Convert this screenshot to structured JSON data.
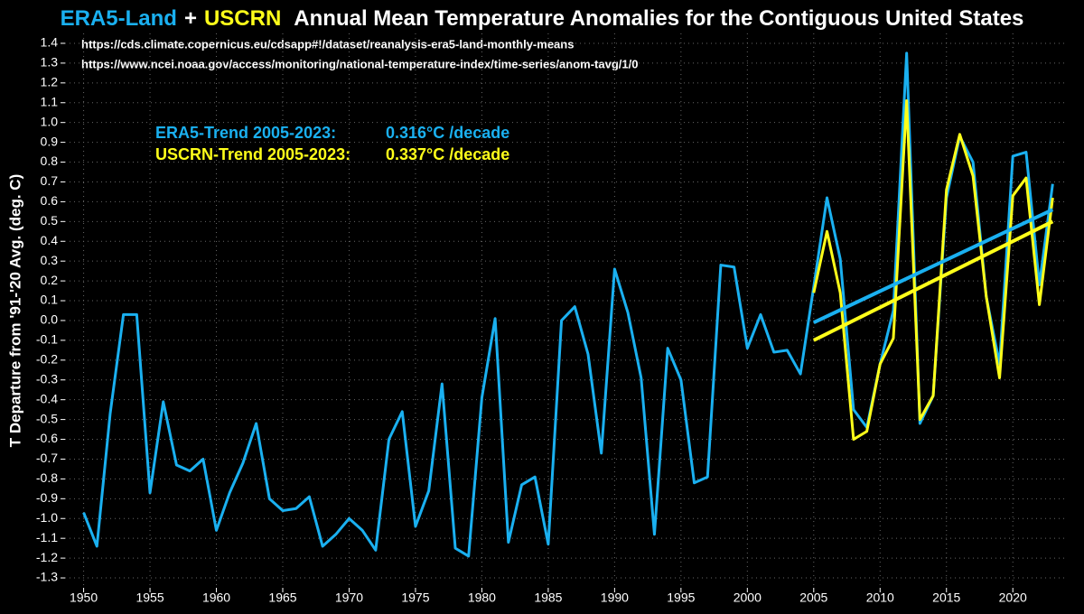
{
  "chart_data": {
    "type": "line",
    "title": "Annual Mean Temperature Anomalies for the Contiguous United States",
    "title_join": "+",
    "sources": [
      "https://cds.climate.copernicus.eu/cdsapp#!/dataset/reanalysis-era5-land-monthly-means",
      "https://www.ncei.noaa.gov/access/monitoring/national-temperature-index/time-series/anom-tavg/1/0"
    ],
    "ylabel": "T Departure from '91-'20 Avg. (deg. C)",
    "annotations": [
      {
        "label": "ERA5-Trend 2005-2023:",
        "value": "0.316°C /decade",
        "color": "#1ab0f0"
      },
      {
        "label": "USCRN-Trend 2005-2023:",
        "value": "0.337°C /decade",
        "color": "#ffff1a"
      }
    ],
    "series": [
      {
        "name": "ERA5-Land",
        "color": "#1ab0f0",
        "x": [
          1950,
          1951,
          1952,
          1953,
          1954,
          1955,
          1956,
          1957,
          1958,
          1959,
          1960,
          1961,
          1962,
          1963,
          1964,
          1965,
          1966,
          1967,
          1968,
          1969,
          1970,
          1971,
          1972,
          1973,
          1974,
          1975,
          1976,
          1977,
          1978,
          1979,
          1980,
          1981,
          1982,
          1983,
          1984,
          1985,
          1986,
          1987,
          1988,
          1989,
          1990,
          1991,
          1992,
          1993,
          1994,
          1995,
          1996,
          1997,
          1998,
          1999,
          2000,
          2001,
          2002,
          2003,
          2004,
          2005,
          2006,
          2007,
          2008,
          2009,
          2010,
          2011,
          2012,
          2013,
          2014,
          2015,
          2016,
          2017,
          2018,
          2019,
          2020,
          2021,
          2022,
          2023
        ],
        "values": [
          -0.97,
          -1.14,
          -0.47,
          0.03,
          0.03,
          -0.87,
          -0.41,
          -0.73,
          -0.76,
          -0.7,
          -1.06,
          -0.87,
          -0.72,
          -0.52,
          -0.9,
          -0.96,
          -0.95,
          -0.89,
          -1.14,
          -1.08,
          -1.0,
          -1.06,
          -1.16,
          -0.6,
          -0.46,
          -1.04,
          -0.86,
          -0.32,
          -1.15,
          -1.19,
          -0.39,
          0.01,
          -1.12,
          -0.83,
          -0.79,
          -1.13,
          0.0,
          0.07,
          -0.17,
          -0.67,
          0.26,
          0.04,
          -0.29,
          -1.08,
          -0.14,
          -0.3,
          -0.82,
          -0.79,
          0.28,
          0.27,
          -0.14,
          0.03,
          -0.16,
          -0.15,
          -0.27,
          0.17,
          0.62,
          0.31,
          -0.45,
          -0.54,
          -0.22,
          0.05,
          1.35,
          -0.52,
          -0.38,
          0.62,
          0.93,
          0.8,
          0.12,
          -0.22,
          0.83,
          0.85,
          0.18,
          0.69
        ]
      },
      {
        "name": "USCRN",
        "color": "#ffff1a",
        "x": [
          2005,
          2006,
          2007,
          2008,
          2009,
          2010,
          2011,
          2012,
          2013,
          2014,
          2015,
          2016,
          2017,
          2018,
          2019,
          2020,
          2021,
          2022,
          2023
        ],
        "values": [
          0.14,
          0.45,
          0.14,
          -0.6,
          -0.56,
          -0.22,
          -0.09,
          1.11,
          -0.5,
          -0.38,
          0.66,
          0.94,
          0.73,
          0.12,
          -0.29,
          0.63,
          0.72,
          0.08,
          0.62
        ]
      }
    ],
    "trend_lines": [
      {
        "color": "#1ab0f0",
        "x": [
          2005,
          2023
        ],
        "values": [
          -0.01,
          0.56
        ]
      },
      {
        "color": "#ffff1a",
        "x": [
          2005,
          2023
        ],
        "values": [
          -0.1,
          0.5
        ]
      }
    ],
    "xlim": [
      1948.6,
      2024
    ],
    "xticks": [
      1950,
      1955,
      1960,
      1965,
      1970,
      1975,
      1980,
      1985,
      1990,
      1995,
      2000,
      2005,
      2010,
      2015,
      2020
    ],
    "ylim": [
      -1.35,
      1.45
    ],
    "yticks": [
      -1.3,
      -1.2,
      -1.1,
      {
        "value": -1,
        "label": "-1.0"
      },
      -0.9,
      -0.8,
      -0.7,
      -0.6,
      -0.5,
      -0.4,
      -0.3,
      -0.2,
      -0.1,
      {
        "value": 0,
        "label": "0.0"
      },
      0.1,
      0.2,
      0.3,
      0.4,
      0.5,
      0.6,
      0.7,
      0.8,
      0.9,
      {
        "value": 1,
        "label": "1.0"
      },
      1.1,
      1.2,
      1.3,
      1.4
    ],
    "grid": true
  }
}
